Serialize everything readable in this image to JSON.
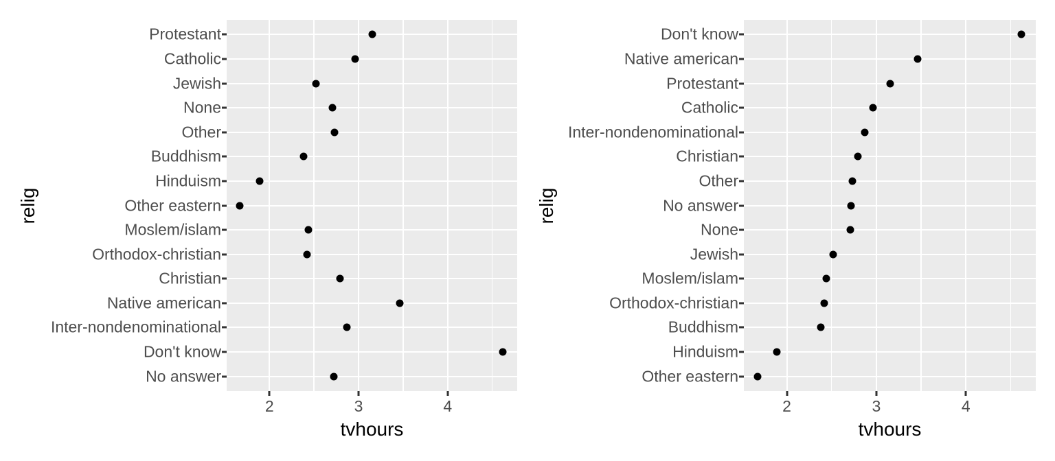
{
  "style": {
    "panel_background": "#ebebeb",
    "gridline_color": "#ffffff",
    "point_color": "#000000",
    "axis_text_color": "#4d4d4d",
    "axis_tick_color": "#333333",
    "axis_title_color": "#000000",
    "page_background": "#ffffff"
  },
  "chart_data": [
    {
      "type": "scatter",
      "title": "",
      "xlabel": "tvhours",
      "ylabel": "relig",
      "orientation": "horizontal-dotplot",
      "legend": "none",
      "grid": "white major gridlines on x and y, white minor gridlines on x",
      "categories": [
        "Protestant",
        "Catholic",
        "Jewish",
        "None",
        "Other",
        "Buddhism",
        "Hinduism",
        "Other eastern",
        "Moslem/islam",
        "Orthodox-christian",
        "Christian",
        "Native american",
        "Inter-nondenominational",
        "Don't know",
        "No answer"
      ],
      "values": [
        3.15,
        2.96,
        2.52,
        2.71,
        2.73,
        2.38,
        1.89,
        1.67,
        2.44,
        2.42,
        2.79,
        3.46,
        2.87,
        4.62,
        2.72
      ],
      "xlim": [
        1.52,
        4.78
      ],
      "x_major_ticks": [
        2,
        3,
        4
      ],
      "x_minor_gridlines": [
        2.5,
        3.5,
        4.5
      ]
    },
    {
      "type": "scatter",
      "title": "",
      "xlabel": "tvhours",
      "ylabel": "relig",
      "orientation": "horizontal-dotplot",
      "legend": "none",
      "grid": "white major gridlines on x and y, white minor gridlines on x",
      "categories": [
        "Don't know",
        "Native american",
        "Protestant",
        "Catholic",
        "Inter-nondenominational",
        "Christian",
        "Other",
        "No answer",
        "None",
        "Jewish",
        "Moslem/islam",
        "Orthodox-christian",
        "Buddhism",
        "Hinduism",
        "Other eastern"
      ],
      "values": [
        4.62,
        3.46,
        3.15,
        2.96,
        2.87,
        2.79,
        2.73,
        2.72,
        2.71,
        2.52,
        2.44,
        2.42,
        2.38,
        1.89,
        1.67
      ],
      "xlim": [
        1.52,
        4.78
      ],
      "x_major_ticks": [
        2,
        3,
        4
      ],
      "x_minor_gridlines": [
        2.5,
        3.5,
        4.5
      ]
    }
  ]
}
